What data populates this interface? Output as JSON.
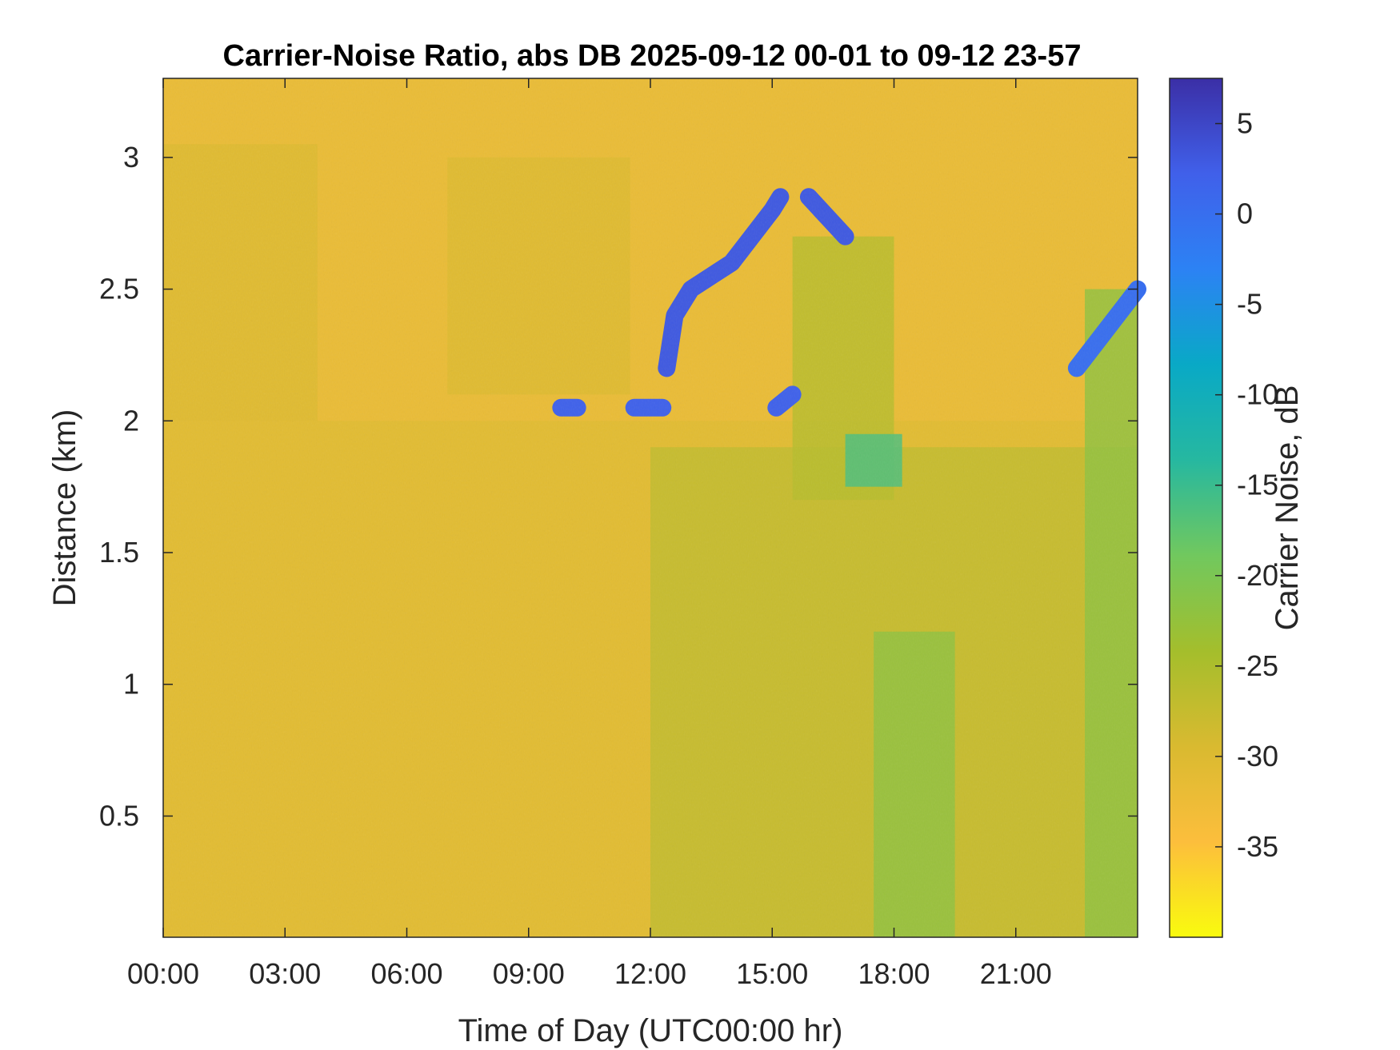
{
  "chart_data": {
    "type": "heatmap",
    "title": "Carrier-Noise Ratio, abs DB 2025-09-12 00-01 to 09-12 23-57",
    "xlabel": "Time of Day (UTC00:00 hr)",
    "ylabel": "Distance (km)",
    "colorbar_label": "Carrier Noise, dB",
    "x_ticks": [
      "00:00",
      "03:00",
      "06:00",
      "09:00",
      "12:00",
      "15:00",
      "18:00",
      "21:00"
    ],
    "x_tick_hours": [
      0,
      3,
      6,
      9,
      12,
      15,
      18,
      21
    ],
    "xlim_hours": [
      0,
      24
    ],
    "y_ticks": [
      0.5,
      1,
      1.5,
      2,
      2.5,
      3
    ],
    "y_tick_labels": [
      "0.5",
      "1",
      "1.5",
      "2",
      "2.5",
      "3"
    ],
    "ylim_km": [
      0.04,
      3.3
    ],
    "colorbar_ticks": [
      5,
      0,
      -5,
      -10,
      -15,
      -20,
      -25,
      -30,
      -35
    ],
    "colorbar_tick_labels": [
      "5",
      "0",
      "-5",
      "-10",
      "-15",
      "-20",
      "-25",
      "-30",
      "-35"
    ],
    "clim_db": [
      -40,
      7.5
    ],
    "colormap": [
      "#f9fb0e",
      "#fcbe3c",
      "#d9ba30",
      "#a4be2c",
      "#71c85e",
      "#26b8a0",
      "#09a9c6",
      "#2c82f4",
      "#4060ea",
      "#3b2fa6"
    ],
    "background_level_db": -32,
    "features": [
      {
        "name": "cloud top edge",
        "x_hours": [
          12.4,
          12.6,
          13.0,
          13.5,
          14.0,
          14.5,
          15.0,
          15.2
        ],
        "y_km": [
          2.2,
          2.4,
          2.5,
          2.55,
          2.6,
          2.7,
          2.8,
          2.85
        ],
        "value_db": 3
      },
      {
        "name": "cloud top edge",
        "x_hours": [
          15.9,
          16.2,
          16.5,
          16.8
        ],
        "y_km": [
          2.85,
          2.8,
          2.75,
          2.7
        ],
        "value_db": 3
      },
      {
        "name": "cloud base patch",
        "x_hours": [
          9.8,
          10.2
        ],
        "y_km": [
          2.05,
          2.05
        ],
        "value_db": 2
      },
      {
        "name": "cloud base patch",
        "x_hours": [
          11.6,
          12.3
        ],
        "y_km": [
          2.05,
          2.05
        ],
        "value_db": 2
      },
      {
        "name": "cloud base patch",
        "x_hours": [
          15.1,
          15.5
        ],
        "y_km": [
          2.05,
          2.1
        ],
        "value_db": 2
      },
      {
        "name": "boundary layer",
        "x_hours": [
          12,
          24
        ],
        "y_km": [
          0.04,
          1.9
        ],
        "value_db": -24
      },
      {
        "name": "late-day cloud",
        "x_hours": [
          22.5,
          24
        ],
        "y_km": [
          2.2,
          2.5
        ],
        "value_db": 0
      }
    ]
  }
}
